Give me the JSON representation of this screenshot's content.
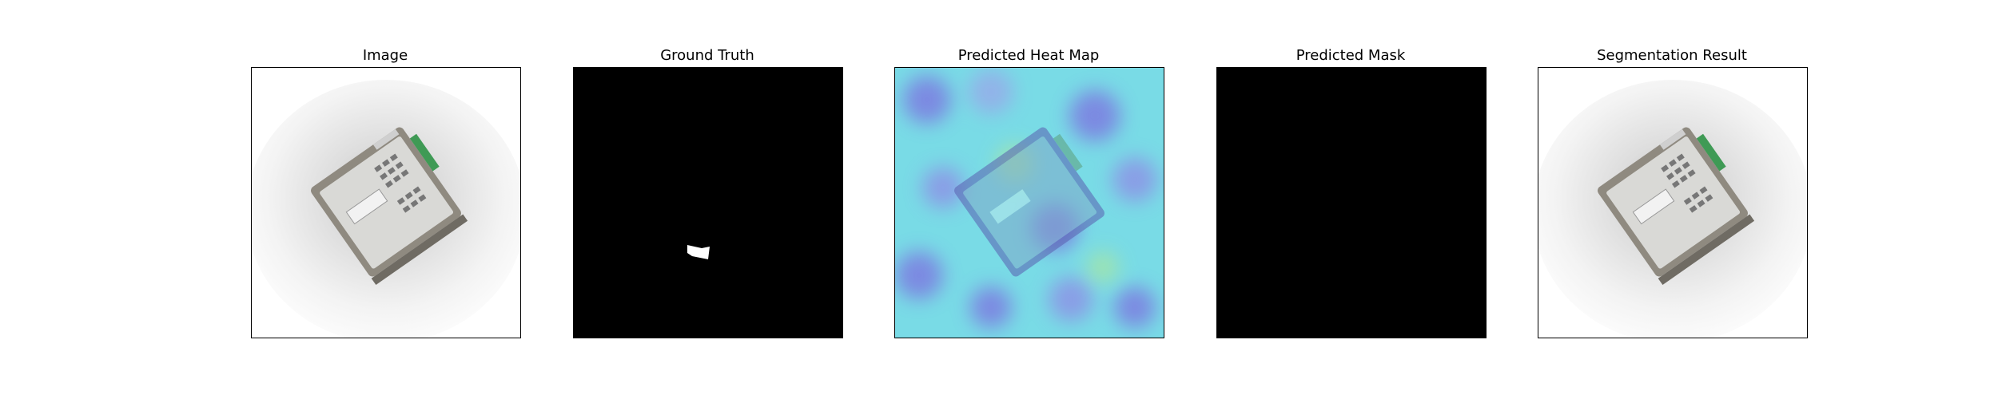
{
  "panels": [
    {
      "title": "Image",
      "kind": "photo"
    },
    {
      "title": "Ground Truth",
      "kind": "gt-mask"
    },
    {
      "title": "Predicted Heat Map",
      "kind": "heatmap"
    },
    {
      "title": "Predicted Mask",
      "kind": "empty-mask"
    },
    {
      "title": "Segmentation Result",
      "kind": "photo"
    }
  ],
  "colors": {
    "background": "#ffffff",
    "mask_background": "#000000",
    "mask_foreground": "#ffffff",
    "device_body": "#8f8a80",
    "device_label": "#e4e4e4",
    "terminal_block": "#3f9a55",
    "heatmap_base": "#79dbe6",
    "heatmap_hot": "#7d70e0"
  }
}
